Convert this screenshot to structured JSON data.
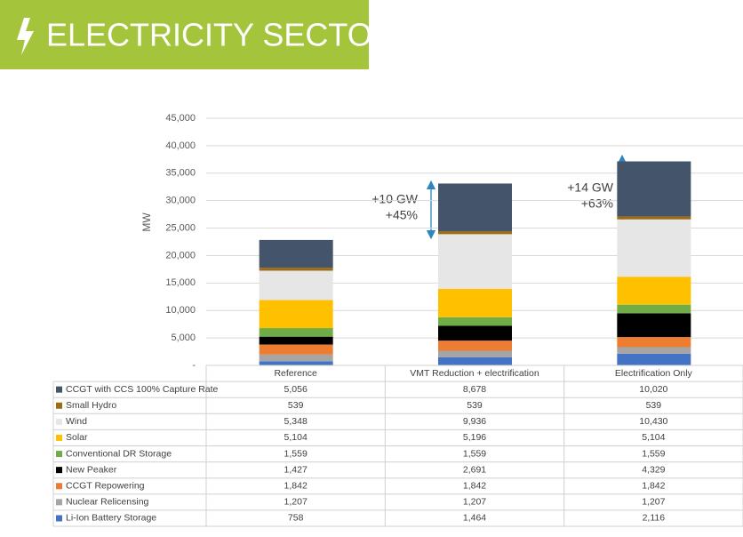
{
  "header": {
    "title": "ELECTRICITY SECTOR"
  },
  "chart_data": {
    "type": "stacked_bar",
    "y_label": "MW",
    "categories": [
      "Reference",
      "VMT Reduction + electrification",
      "Electrification Only"
    ],
    "ylim": [
      0,
      45000
    ],
    "yticks": [
      {
        "value": 0,
        "label": "-"
      },
      {
        "value": 5000,
        "label": "5,000"
      },
      {
        "value": 10000,
        "label": "10,000"
      },
      {
        "value": 15000,
        "label": "15,000"
      },
      {
        "value": 20000,
        "label": "20,000"
      },
      {
        "value": 25000,
        "label": "25,000"
      },
      {
        "value": 30000,
        "label": "30,000"
      },
      {
        "value": 35000,
        "label": "35,000"
      },
      {
        "value": 40000,
        "label": "40,000"
      },
      {
        "value": 45000,
        "label": "45,000"
      }
    ],
    "grid": true,
    "series": [
      {
        "name": "CCGT with CCS 100% Capture Rate",
        "color": "#44546a",
        "values": [
          5056,
          8678,
          10020
        ],
        "value_labels": [
          "5,056",
          "8,678",
          "10,020"
        ]
      },
      {
        "name": "Small Hydro",
        "color": "#9c6b14",
        "values": [
          539,
          539,
          539
        ],
        "value_labels": [
          "539",
          "539",
          "539"
        ]
      },
      {
        "name": "Wind",
        "color": "#e7e6e6",
        "values": [
          5348,
          9936,
          10430
        ],
        "value_labels": [
          "5,348",
          "9,936",
          "10,430"
        ]
      },
      {
        "name": "Solar",
        "color": "#ffc000",
        "values": [
          5104,
          5196,
          5104
        ],
        "value_labels": [
          "5,104",
          "5,196",
          "5,104"
        ]
      },
      {
        "name": "Conventional DR Storage",
        "color": "#70ad47",
        "values": [
          1559,
          1559,
          1559
        ],
        "value_labels": [
          "1,559",
          "1,559",
          "1,559"
        ]
      },
      {
        "name": "New Peaker",
        "color": "#000000",
        "values": [
          1427,
          2691,
          4329
        ],
        "value_labels": [
          "1,427",
          "2,691",
          "4,329"
        ]
      },
      {
        "name": "CCGT Repowering",
        "color": "#ed7d31",
        "values": [
          1842,
          1842,
          1842
        ],
        "value_labels": [
          "1,842",
          "1,842",
          "1,842"
        ]
      },
      {
        "name": "Nuclear Relicensing",
        "color": "#a5a5a5",
        "values": [
          1207,
          1207,
          1207
        ],
        "value_labels": [
          "1,207",
          "1,207",
          "1,207"
        ]
      },
      {
        "name": "Li-Ion Battery Storage",
        "color": "#4472c4",
        "values": [
          758,
          1464,
          2116
        ],
        "value_labels": [
          "758",
          "1,464",
          "2,116"
        ]
      }
    ],
    "annotations": [
      {
        "lines": [
          "+10 GW",
          "+45%"
        ]
      },
      {
        "lines": [
          "+14 GW",
          "+63%"
        ]
      }
    ]
  }
}
